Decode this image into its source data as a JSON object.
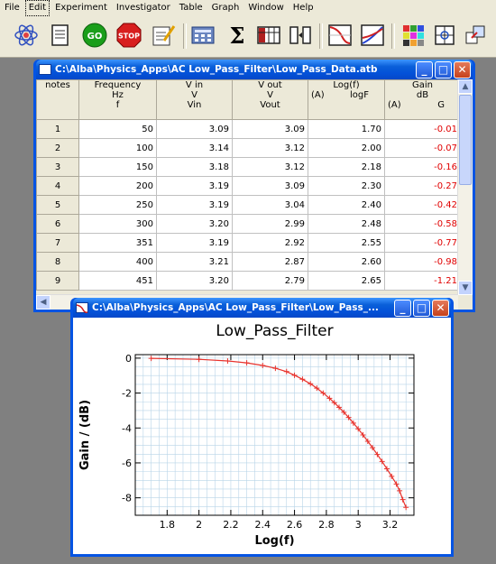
{
  "menu": [
    "File",
    "Edit",
    "Experiment",
    "Investigator",
    "Table",
    "Graph",
    "Window",
    "Help"
  ],
  "toolbar": [
    {
      "name": "atom-icon"
    },
    {
      "name": "notebook-icon"
    },
    {
      "name": "go-icon",
      "label": "GO"
    },
    {
      "name": "stop-icon",
      "label": "STOP"
    },
    {
      "name": "notepad-icon"
    },
    {
      "name": "calculator-icon"
    },
    {
      "name": "sum-icon",
      "label": "Σ"
    },
    {
      "name": "table-columns-icon"
    },
    {
      "name": "column-arrows-icon"
    },
    {
      "name": "line-graph-icon"
    },
    {
      "name": "dual-graph-icon"
    },
    {
      "name": "color-grid-icon"
    },
    {
      "name": "crosshair-icon"
    },
    {
      "name": "export-icon"
    }
  ],
  "table_window": {
    "title": "C:\\Alba\\Physics_Apps\\AC Low_Pass_Filter\\Low_Pass_Data.atb",
    "columns": [
      {
        "lines": [
          "notes"
        ]
      },
      {
        "lines": [
          "Frequency",
          "Hz",
          "f"
        ]
      },
      {
        "lines": [
          "V in",
          "V",
          "Vin"
        ]
      },
      {
        "lines": [
          "V out",
          "V",
          "Vout"
        ]
      },
      {
        "lines": [
          "Log(f)",
          ""
        ],
        "left": "(A)",
        "right": "logF"
      },
      {
        "lines": [
          "Gain",
          "dB"
        ],
        "left": "(A)",
        "right": "G"
      }
    ],
    "rows": [
      [
        "1",
        "50",
        "3.09",
        "3.09",
        "1.70",
        "-0.01"
      ],
      [
        "2",
        "100",
        "3.14",
        "3.12",
        "2.00",
        "-0.07"
      ],
      [
        "3",
        "150",
        "3.18",
        "3.12",
        "2.18",
        "-0.16"
      ],
      [
        "4",
        "200",
        "3.19",
        "3.09",
        "2.30",
        "-0.27"
      ],
      [
        "5",
        "250",
        "3.19",
        "3.04",
        "2.40",
        "-0.42"
      ],
      [
        "6",
        "300",
        "3.20",
        "2.99",
        "2.48",
        "-0.58"
      ],
      [
        "7",
        "351",
        "3.19",
        "2.92",
        "2.55",
        "-0.77"
      ],
      [
        "8",
        "400",
        "3.21",
        "2.87",
        "2.60",
        "-0.98"
      ],
      [
        "9",
        "451",
        "3.20",
        "2.79",
        "2.65",
        "-1.21"
      ]
    ]
  },
  "graph_window": {
    "title": "C:\\Alba\\Physics_Apps\\AC Low_Pass_Filter\\Low_Pass_..."
  },
  "colors": {
    "curve": "#e8322c",
    "grid": "#b8d4e8",
    "title_blue": "#0554e3",
    "negative": "#e00000"
  },
  "chart_data": {
    "type": "line",
    "title": "Low_Pass_Filter",
    "xlabel": "Log(f)",
    "ylabel": "Gain / (dB)",
    "xlim": [
      1.6,
      3.35
    ],
    "ylim": [
      -9.0,
      0.2
    ],
    "xticks": [
      "1.8",
      "2",
      "2.2",
      "2.4",
      "2.6",
      "2.8",
      "3",
      "3.2"
    ],
    "yticks": [
      "0",
      "-2",
      "-4",
      "-6",
      "-8"
    ],
    "grid": true,
    "x": [
      1.7,
      2.0,
      2.18,
      2.3,
      2.4,
      2.48,
      2.55,
      2.6,
      2.65,
      2.7,
      2.74,
      2.78,
      2.82,
      2.85,
      2.88,
      2.91,
      2.94,
      2.97,
      3.0,
      3.03,
      3.06,
      3.09,
      3.12,
      3.15,
      3.18,
      3.21,
      3.24,
      3.26,
      3.28,
      3.3
    ],
    "y": [
      -0.01,
      -0.07,
      -0.16,
      -0.27,
      -0.42,
      -0.58,
      -0.77,
      -0.98,
      -1.21,
      -1.47,
      -1.72,
      -2.0,
      -2.3,
      -2.55,
      -2.82,
      -3.1,
      -3.4,
      -3.72,
      -4.05,
      -4.4,
      -4.76,
      -5.13,
      -5.52,
      -5.92,
      -6.34,
      -6.77,
      -7.21,
      -7.6,
      -8.1,
      -8.55
    ]
  }
}
